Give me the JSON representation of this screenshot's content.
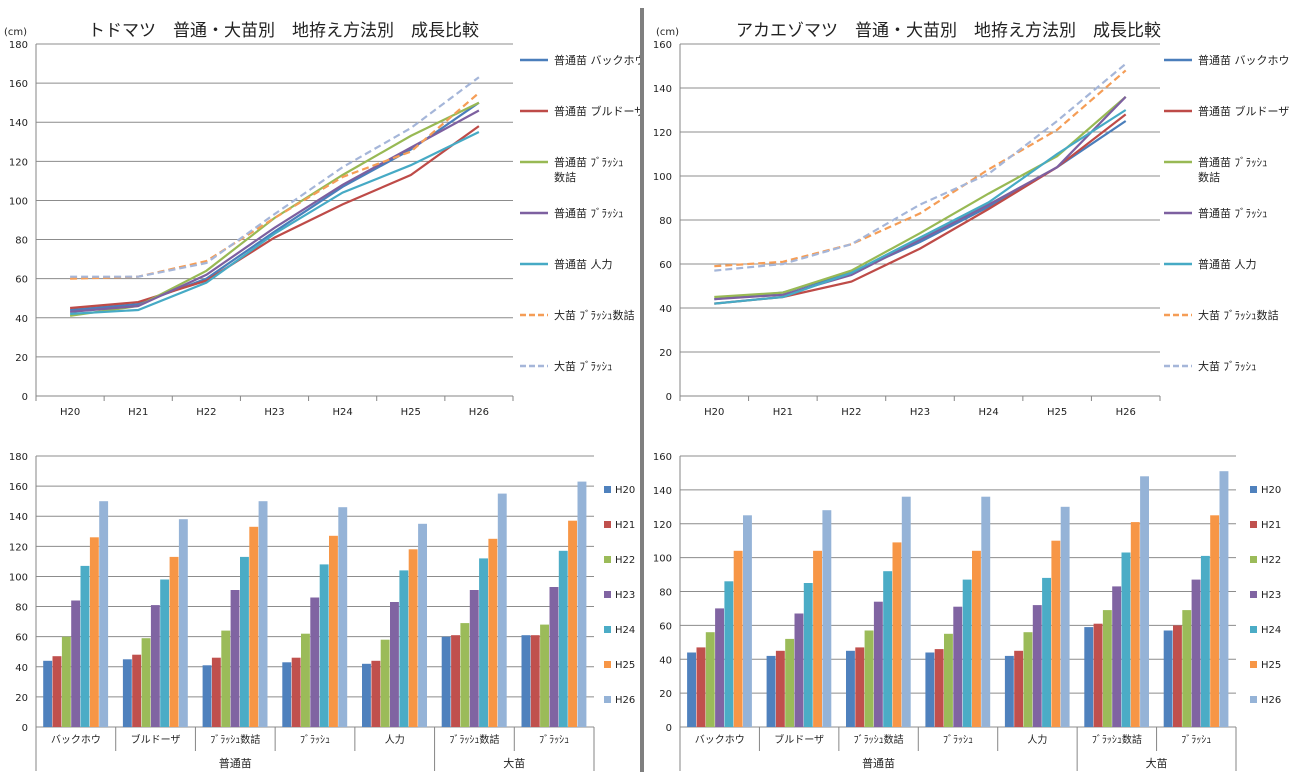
{
  "chart_data": [
    {
      "type": "line",
      "title": "トドマツ　普通・大苗別　地拵え方法別　成長比較",
      "unit": "(cm)",
      "x": [
        "H20",
        "H21",
        "H22",
        "H23",
        "H24",
        "H25",
        "H26"
      ],
      "ylim": [
        0,
        180
      ],
      "yticks": [
        0,
        20,
        40,
        60,
        80,
        100,
        120,
        140,
        160,
        180
      ],
      "grid": true,
      "legend": "right",
      "series": [
        {
          "name": "普通苗 バックホウ",
          "color": "#4a7ebb",
          "dashed": false,
          "values": [
            44,
            47,
            60,
            84,
            107,
            126,
            150
          ]
        },
        {
          "name": "普通苗 ブルドーザ",
          "color": "#be4b48",
          "dashed": false,
          "values": [
            45,
            48,
            59,
            81,
            98,
            113,
            138
          ]
        },
        {
          "name": "普通苗 ﾌﾞﾗｯｼｭ数詰",
          "color": "#98b954",
          "dashed": false,
          "values": [
            41,
            46,
            64,
            91,
            113,
            133,
            150
          ]
        },
        {
          "name": "普通苗 ﾌﾞﾗｯｼｭ",
          "color": "#7d60a0",
          "dashed": false,
          "values": [
            43,
            46,
            62,
            86,
            108,
            127,
            146
          ]
        },
        {
          "name": "普通苗 人力",
          "color": "#46aac5",
          "dashed": false,
          "values": [
            42,
            44,
            58,
            83,
            104,
            118,
            135
          ]
        },
        {
          "name": "大苗 ﾌﾞﾗｯｼｭ数詰",
          "color": "#f59d56",
          "dashed": true,
          "values": [
            60,
            61,
            69,
            91,
            112,
            125,
            155
          ]
        },
        {
          "name": "大苗 ﾌﾞﾗｯｼｭ",
          "color": "#a5b6d9",
          "dashed": true,
          "values": [
            61,
            61,
            68,
            93,
            117,
            137,
            163
          ]
        }
      ]
    },
    {
      "type": "line",
      "title": "アカエゾマツ　普通・大苗別　地拵え方法別　成長比較",
      "unit": "(cm)",
      "x": [
        "H20",
        "H21",
        "H22",
        "H23",
        "H24",
        "H25",
        "H26"
      ],
      "ylim": [
        0,
        160
      ],
      "yticks": [
        0,
        20,
        40,
        60,
        80,
        100,
        120,
        140,
        160
      ],
      "grid": true,
      "legend": "right",
      "series": [
        {
          "name": "普通苗 バックホウ",
          "color": "#4a7ebb",
          "dashed": false,
          "values": [
            44,
            47,
            56,
            70,
            86,
            104,
            125
          ]
        },
        {
          "name": "普通苗 ブルドーザ",
          "color": "#be4b48",
          "dashed": false,
          "values": [
            42,
            45,
            52,
            67,
            85,
            104,
            128
          ]
        },
        {
          "name": "普通苗 ﾌﾞﾗｯｼｭ数詰",
          "color": "#98b954",
          "dashed": false,
          "values": [
            45,
            47,
            57,
            74,
            92,
            109,
            136
          ]
        },
        {
          "name": "普通苗 ﾌﾞﾗｯｼｭ",
          "color": "#7d60a0",
          "dashed": false,
          "values": [
            44,
            46,
            55,
            71,
            87,
            104,
            136
          ]
        },
        {
          "name": "普通苗 人力",
          "color": "#46aac5",
          "dashed": false,
          "values": [
            42,
            45,
            56,
            72,
            88,
            110,
            130
          ]
        },
        {
          "name": "大苗 ﾌﾞﾗｯｼｭ数詰",
          "color": "#f59d56",
          "dashed": true,
          "values": [
            59,
            61,
            69,
            83,
            103,
            121,
            148
          ]
        },
        {
          "name": "大苗 ﾌﾞﾗｯｼｭ",
          "color": "#a5b6d9",
          "dashed": true,
          "values": [
            57,
            60,
            69,
            87,
            101,
            125,
            151
          ]
        }
      ]
    },
    {
      "type": "bar",
      "categories": [
        "バックホウ",
        "ブルドーザ",
        "ﾌﾞﾗｯｼｭ数詰",
        "ﾌﾞﾗｯｼｭ",
        "人力",
        "ﾌﾞﾗｯｼｭ数詰",
        "ﾌﾞﾗｯｼｭ"
      ],
      "groups": [
        {
          "label": "普通苗",
          "count": 5
        },
        {
          "label": "大苗",
          "count": 2
        }
      ],
      "ylim": [
        0,
        180
      ],
      "yticks": [
        0,
        20,
        40,
        60,
        80,
        100,
        120,
        140,
        160,
        180
      ],
      "grid": true,
      "legend": "right",
      "series": [
        {
          "name": "H20",
          "color": "#4f81bd",
          "values": [
            44,
            45,
            41,
            43,
            42,
            60,
            61
          ]
        },
        {
          "name": "H21",
          "color": "#c0504d",
          "values": [
            47,
            48,
            46,
            46,
            44,
            61,
            61
          ]
        },
        {
          "name": "H22",
          "color": "#9bbb59",
          "values": [
            60,
            59,
            64,
            62,
            58,
            69,
            68
          ]
        },
        {
          "name": "H23",
          "color": "#8064a2",
          "values": [
            84,
            81,
            91,
            86,
            83,
            91,
            93
          ]
        },
        {
          "name": "H24",
          "color": "#4bacc6",
          "values": [
            107,
            98,
            113,
            108,
            104,
            112,
            117
          ]
        },
        {
          "name": "H25",
          "color": "#f79646",
          "values": [
            126,
            113,
            133,
            127,
            118,
            125,
            137
          ]
        },
        {
          "name": "H26",
          "color": "#95b3d7",
          "values": [
            150,
            138,
            150,
            146,
            135,
            155,
            163
          ]
        }
      ]
    },
    {
      "type": "bar",
      "categories": [
        "バックホウ",
        "ブルドーザ",
        "ﾌﾞﾗｯｼｭ数詰",
        "ﾌﾞﾗｯｼｭ",
        "人力",
        "ﾌﾞﾗｯｼｭ数詰",
        "ﾌﾞﾗｯｼｭ"
      ],
      "groups": [
        {
          "label": "普通苗",
          "count": 5
        },
        {
          "label": "大苗",
          "count": 2
        }
      ],
      "ylim": [
        0,
        160
      ],
      "yticks": [
        0,
        20,
        40,
        60,
        80,
        100,
        120,
        140,
        160
      ],
      "grid": true,
      "legend": "right",
      "series": [
        {
          "name": "H20",
          "color": "#4f81bd",
          "values": [
            44,
            42,
            45,
            44,
            42,
            59,
            57
          ]
        },
        {
          "name": "H21",
          "color": "#c0504d",
          "values": [
            47,
            45,
            47,
            46,
            45,
            61,
            60
          ]
        },
        {
          "name": "H22",
          "color": "#9bbb59",
          "values": [
            56,
            52,
            57,
            55,
            56,
            69,
            69
          ]
        },
        {
          "name": "H23",
          "color": "#8064a2",
          "values": [
            70,
            67,
            74,
            71,
            72,
            83,
            87
          ]
        },
        {
          "name": "H24",
          "color": "#4bacc6",
          "values": [
            86,
            85,
            92,
            87,
            88,
            103,
            101
          ]
        },
        {
          "name": "H25",
          "color": "#f79646",
          "values": [
            104,
            104,
            109,
            104,
            110,
            121,
            125
          ]
        },
        {
          "name": "H26",
          "color": "#95b3d7",
          "values": [
            125,
            128,
            136,
            136,
            130,
            148,
            151
          ]
        }
      ]
    }
  ]
}
